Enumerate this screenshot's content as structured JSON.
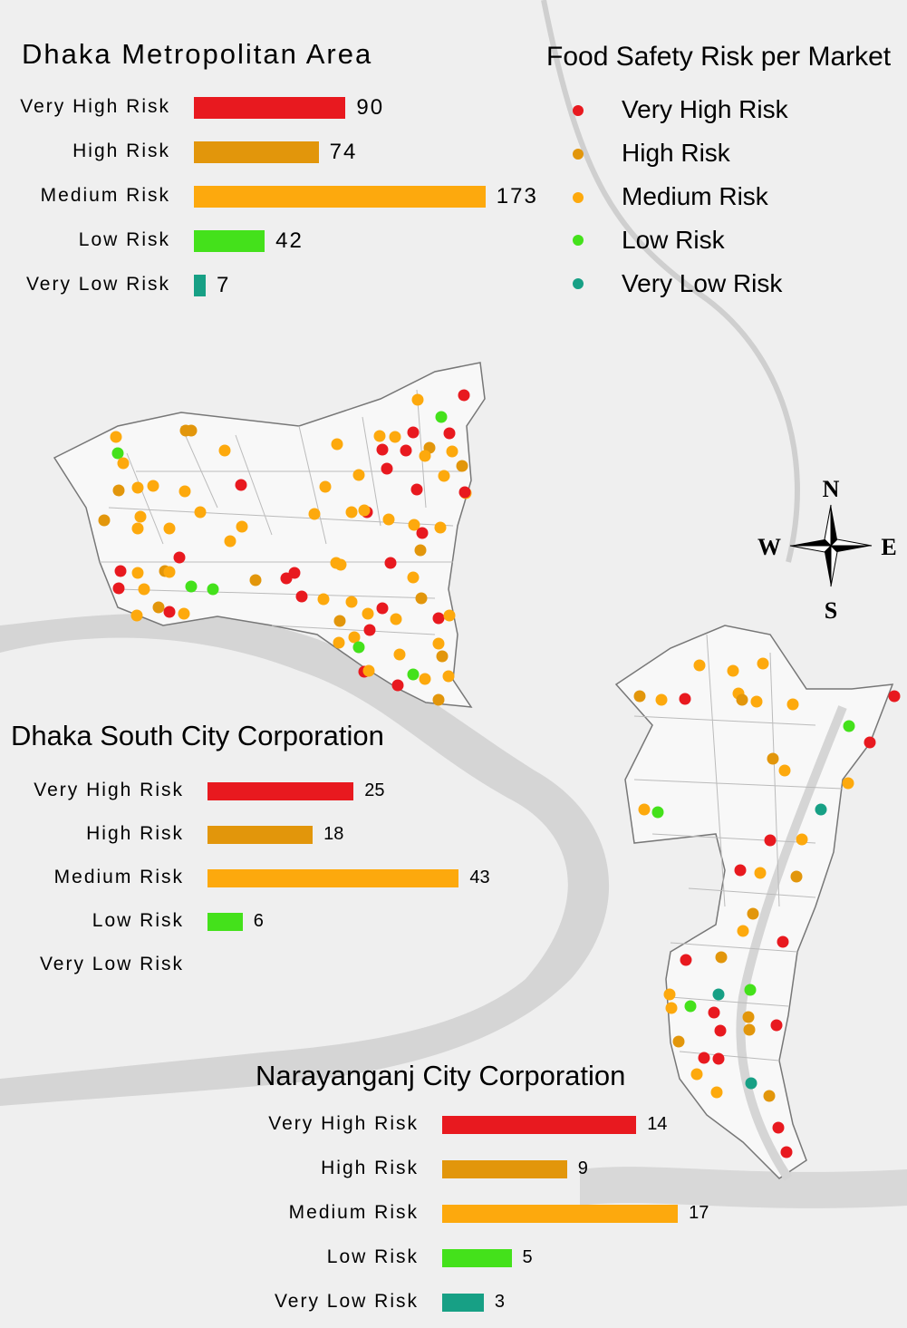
{
  "colors": {
    "very_high": "#e8191f",
    "high": "#e2960b",
    "medium": "#fda90d",
    "low": "#44e11b",
    "very_low": "#17a085"
  },
  "legend": {
    "title": "Food Safety Risk per Market",
    "items": [
      "Very High Risk",
      "High Risk",
      "Medium Risk",
      "Low Risk",
      "Very Low Risk"
    ]
  },
  "compass": {
    "n": "N",
    "s": "S",
    "w": "W",
    "e": "E"
  },
  "chart_data": [
    {
      "type": "bar",
      "title": "Dhaka Metropolitan Area",
      "categories": [
        "Very High Risk",
        "High Risk",
        "Medium Risk",
        "Low Risk",
        "Very Low Risk"
      ],
      "values": [
        90,
        74,
        173,
        42,
        7
      ]
    },
    {
      "type": "bar",
      "title": "Dhaka South City Corporation",
      "categories": [
        "Very High Risk",
        "High Risk",
        "Medium Risk",
        "Low Risk",
        "Very Low Risk"
      ],
      "values": [
        25,
        18,
        43,
        6,
        null
      ]
    },
    {
      "type": "bar",
      "title": "Narayanganj City Corporation",
      "categories": [
        "Very High Risk",
        "High Risk",
        "Medium Risk",
        "Low Risk",
        "Very Low Risk"
      ],
      "values": [
        14,
        9,
        17,
        5,
        3
      ]
    }
  ]
}
